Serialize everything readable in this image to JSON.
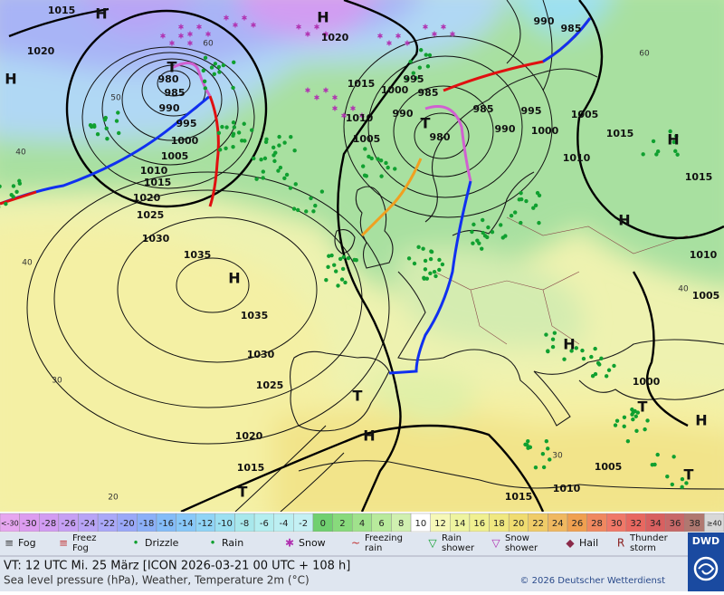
{
  "map": {
    "pressure_labels": [
      "1015",
      "1020",
      "980",
      "985",
      "990",
      "995",
      "1000",
      "1005",
      "1010",
      "1015",
      "1020",
      "1025",
      "1030",
      "1035",
      "1035",
      "1030",
      "1025",
      "1020",
      "1015",
      "1020",
      "1015",
      "1010",
      "1005",
      "1000",
      "995",
      "990",
      "985",
      "980",
      "985",
      "990",
      "995",
      "1000",
      "1005",
      "1010",
      "1015",
      "1015",
      "1010",
      "1005",
      "1000",
      "1005",
      "1010",
      "1015",
      "990",
      "985"
    ],
    "highs": [
      "H",
      "H",
      "H",
      "H",
      "H",
      "H",
      "H",
      "H",
      "H"
    ],
    "lows": [
      "T",
      "T",
      "T",
      "T",
      "T",
      "T"
    ],
    "grid_labels": [
      "60",
      "50",
      "40",
      "40",
      "30",
      "20",
      "60",
      "40",
      "30"
    ]
  },
  "legend": {
    "scale": [
      "<-30",
      "-30",
      "-28",
      "-26",
      "-24",
      "-22",
      "-20",
      "-18",
      "-16",
      "-14",
      "-12",
      "-10",
      "-8",
      "-6",
      "-4",
      "-2",
      "0",
      "2",
      "4",
      "6",
      "8",
      "10",
      "12",
      "14",
      "16",
      "18",
      "20",
      "22",
      "24",
      "26",
      "28",
      "30",
      "32",
      "34",
      "36",
      "38",
      "≥40"
    ],
    "scale_colors": [
      "#e6a6f0",
      "#dc9cf0",
      "#d29cf2",
      "#c6a0f4",
      "#b8a4f6",
      "#aaa8f8",
      "#9aa8f8",
      "#8cb0f8",
      "#84bcf8",
      "#88c8f8",
      "#90d4f6",
      "#9ce0f2",
      "#a8e8ec",
      "#b4eef0",
      "#bceff2",
      "#c4f0f4",
      "#70d070",
      "#88da7c",
      "#a0e28c",
      "#b8ea9c",
      "#d0f0b0",
      "#ffffff",
      "#f6f8b8",
      "#eef4a0",
      "#f0f090",
      "#f0e880",
      "#f0dc70",
      "#f0cc68",
      "#f0b860",
      "#f0a050",
      "#f08860",
      "#f07868",
      "#e86860",
      "#d86060",
      "#c86868",
      "#b07870",
      "#d8d8d8"
    ],
    "weather": [
      "Fog",
      "Freez\nFog",
      "Drizzle",
      "Rain",
      "Snow",
      "Freezing\nrain",
      "Rain\nshower",
      "Snow\nshower",
      "Hail",
      "Thunder\nstorm"
    ]
  },
  "footer": {
    "valid_time": "VT: 12 UTC Mi.  25 März [ICON 2026-03-21  00 UTC + 108 h]",
    "description": "Sea level pressure (hPa), Weather, Temperature 2m (°C)",
    "copyright": "© 2026 Deutscher Wetterdienst",
    "logo": "DWD"
  }
}
